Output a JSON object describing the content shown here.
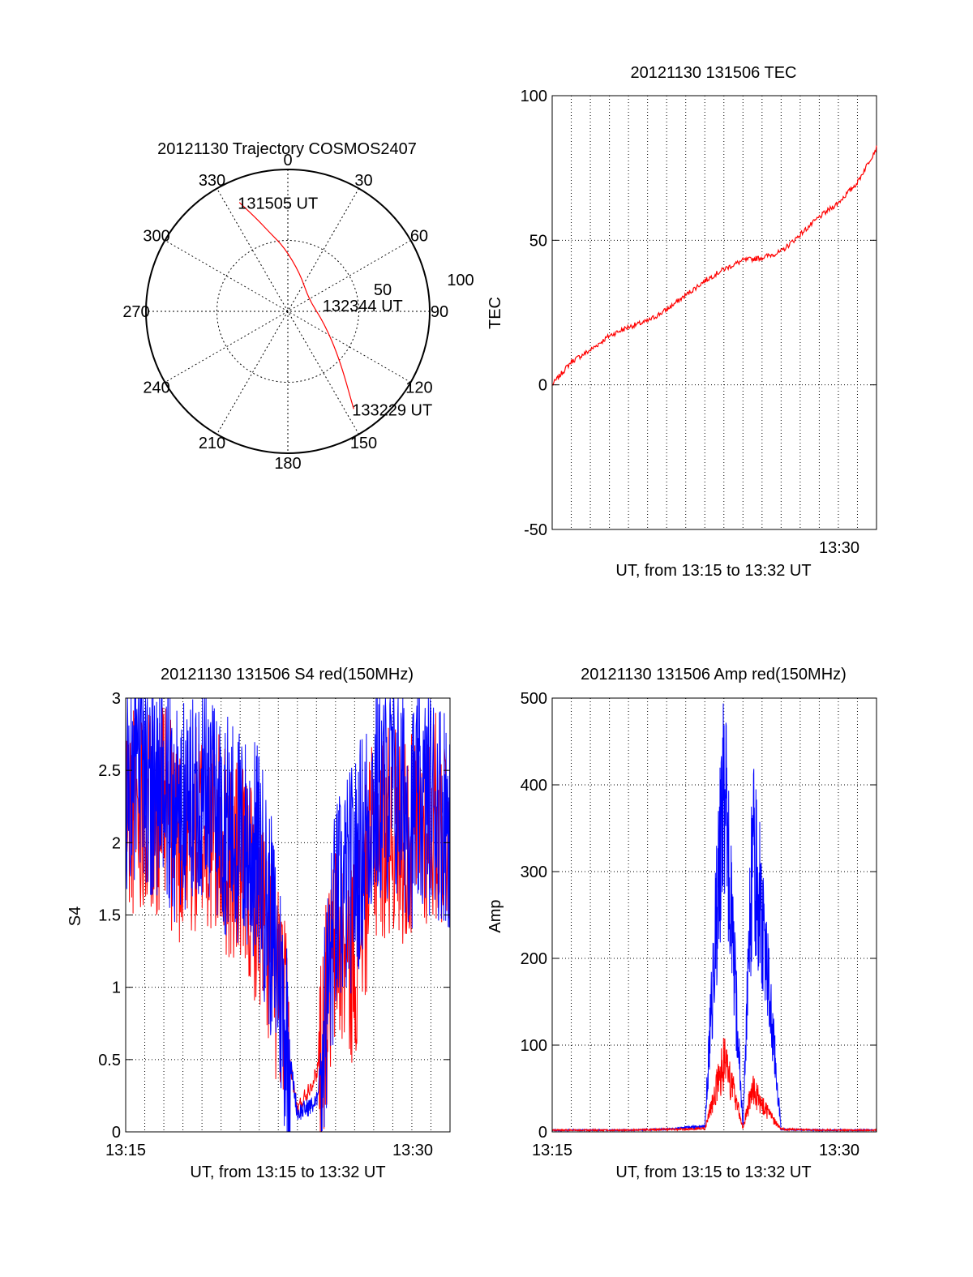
{
  "chart_data": [
    {
      "type": "polar",
      "title": "20121130 Trajectory COSMOS2407",
      "angle_ticks": [
        "0",
        "30",
        "60",
        "90",
        "120",
        "150",
        "180",
        "210",
        "240",
        "270",
        "300",
        "330"
      ],
      "radius_ticks": [
        "50",
        "100"
      ],
      "rlim": [
        0,
        100
      ],
      "grid": true,
      "series": [
        {
          "color": "#ff0000",
          "points": [
            {
              "az": 336,
              "r": 84
            },
            {
              "az": 341,
              "r": 70
            },
            {
              "az": 347,
              "r": 57
            },
            {
              "az": 357,
              "r": 45
            },
            {
              "az": 18,
              "r": 28
            },
            {
              "az": 60,
              "r": 17
            },
            {
              "az": 108,
              "r": 27
            },
            {
              "az": 133,
              "r": 50
            },
            {
              "az": 146,
              "r": 83
            }
          ]
        }
      ],
      "annotations": [
        {
          "text": "131505 UT",
          "az": 336,
          "r": 84
        },
        {
          "text": "132344 UT",
          "az": 80,
          "r": 26
        },
        {
          "text": "133229 UT",
          "az": 146,
          "r": 83
        }
      ]
    },
    {
      "type": "line",
      "title": "20121130 131506 TEC",
      "ylabel": "TEC",
      "xlabel": "UT, from 13:15 to 13:32 UT",
      "xlim": [
        "13:15",
        "13:32"
      ],
      "ylim": [
        -50,
        100
      ],
      "yticks": [
        "-50",
        "0",
        "50",
        "100"
      ],
      "xticks": [
        "13:30"
      ],
      "grid": true,
      "series": [
        {
          "color": "#ff0000",
          "x": [
            "13:15",
            "13:16",
            "13:17",
            "13:18",
            "13:19",
            "13:20",
            "13:21",
            "13:22",
            "13:23",
            "13:24",
            "13:25",
            "13:26",
            "13:27",
            "13:28",
            "13:29",
            "13:30",
            "13:31",
            "13:32"
          ],
          "values": [
            0,
            8,
            12,
            17,
            20,
            22,
            26,
            31,
            36,
            40,
            43,
            44,
            46,
            52,
            58,
            63,
            70,
            82
          ]
        }
      ]
    },
    {
      "type": "line",
      "title": "20121130 131506 S4 red(150MHz)",
      "ylabel": "S4",
      "xlabel": "UT, from 13:15 to 13:32 UT",
      "xlim": [
        "13:15",
        "13:32"
      ],
      "ylim": [
        0,
        3
      ],
      "yticks": [
        "0",
        "0.5",
        "1",
        "1.5",
        "2",
        "2.5",
        "3"
      ],
      "xticks": [
        "13:15",
        "13:30"
      ],
      "grid": true,
      "series": [
        {
          "color": "#ff0000",
          "x": [
            "13:15",
            "13:16",
            "13:17",
            "13:18",
            "13:19",
            "13:20",
            "13:21",
            "13:22",
            "13:23",
            "13:24",
            "13:25",
            "13:26",
            "13:27",
            "13:28",
            "13:29",
            "13:30",
            "13:31",
            "13:32"
          ],
          "values": [
            2.2,
            2.3,
            2.2,
            2.0,
            2.1,
            2.0,
            1.8,
            1.6,
            1.0,
            0.15,
            0.4,
            1.3,
            1.2,
            2.0,
            2.1,
            2.0,
            2.2,
            2.1
          ]
        },
        {
          "color": "#0000ff",
          "x": [
            "13:15",
            "13:16",
            "13:17",
            "13:18",
            "13:19",
            "13:20",
            "13:21",
            "13:22",
            "13:23",
            "13:24",
            "13:25",
            "13:26",
            "13:27",
            "13:28",
            "13:29",
            "13:30",
            "13:31",
            "13:32"
          ],
          "values": [
            2.4,
            2.5,
            2.3,
            2.2,
            2.4,
            2.2,
            2.0,
            1.9,
            1.1,
            0.13,
            0.2,
            1.5,
            1.8,
            2.3,
            2.4,
            2.2,
            2.3,
            2.2
          ]
        }
      ]
    },
    {
      "type": "line",
      "title": "20121130 131506 Amp red(150MHz)",
      "ylabel": "Amp",
      "xlabel": "UT, from 13:15 to 13:32 UT",
      "xlim": [
        "13:15",
        "13:32"
      ],
      "ylim": [
        0,
        500
      ],
      "yticks": [
        "0",
        "100",
        "200",
        "300",
        "400",
        "500"
      ],
      "xticks": [
        "13:15",
        "13:30"
      ],
      "grid": true,
      "series": [
        {
          "color": "#ff0000",
          "x": [
            "13:15",
            "13:17",
            "13:19",
            "13:21",
            "13:22",
            "13:23",
            "13:24",
            "13:24.5",
            "13:25",
            "13:25.5",
            "13:26",
            "13:27",
            "13:29",
            "13:31",
            "13:32"
          ],
          "values": [
            2,
            2,
            2,
            3,
            3,
            4,
            80,
            50,
            4,
            50,
            30,
            3,
            2,
            2,
            2
          ]
        },
        {
          "color": "#0000ff",
          "x": [
            "13:15",
            "13:17",
            "13:19",
            "13:21",
            "13:22",
            "13:23",
            "13:24",
            "13:24.5",
            "13:25",
            "13:25.5",
            "13:26",
            "13:27",
            "13:29",
            "13:31",
            "13:32"
          ],
          "values": [
            2,
            2,
            2,
            3,
            5,
            6,
            400,
            200,
            8,
            320,
            250,
            3,
            2,
            2,
            2
          ]
        }
      ]
    }
  ]
}
